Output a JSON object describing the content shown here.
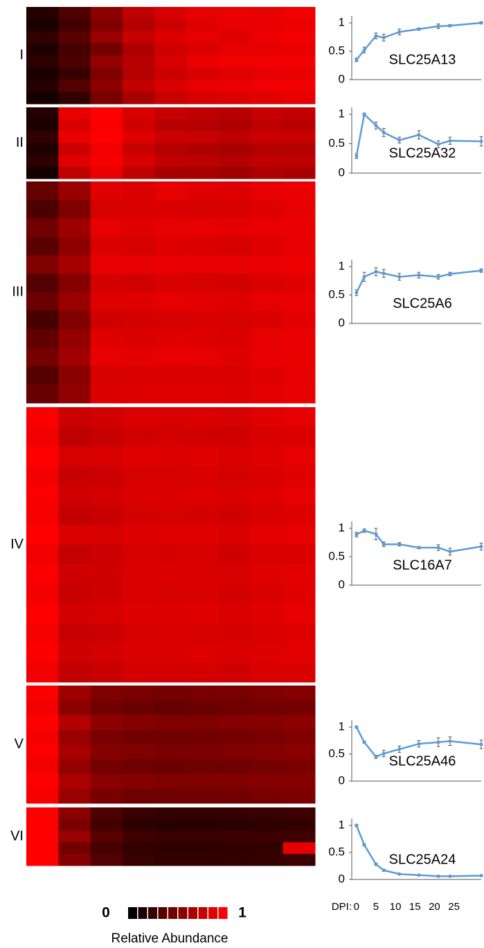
{
  "chart_data": [
    {
      "type": "heatmap",
      "label": "I",
      "rows": [
        [
          0.15,
          0.3,
          0.55,
          0.75,
          0.85,
          0.9,
          0.92,
          0.9,
          0.95
        ],
        [
          0.1,
          0.25,
          0.5,
          0.7,
          0.8,
          0.88,
          0.9,
          0.92,
          0.93
        ],
        [
          0.2,
          0.35,
          0.6,
          0.78,
          0.86,
          0.9,
          0.88,
          0.93,
          0.95
        ],
        [
          0.12,
          0.28,
          0.45,
          0.68,
          0.82,
          0.86,
          0.9,
          0.9,
          0.92
        ],
        [
          0.18,
          0.3,
          0.58,
          0.72,
          0.84,
          0.92,
          0.94,
          0.95,
          0.96
        ],
        [
          0.1,
          0.22,
          0.5,
          0.7,
          0.8,
          0.85,
          0.88,
          0.9,
          0.92
        ],
        [
          0.15,
          0.32,
          0.55,
          0.76,
          0.85,
          0.9,
          0.92,
          0.94,
          0.95
        ],
        [
          0.08,
          0.2,
          0.48,
          0.66,
          0.78,
          0.84,
          0.86,
          0.88,
          0.9
        ]
      ]
    },
    {
      "type": "heatmap",
      "label": "II",
      "rows": [
        [
          0.15,
          0.9,
          1,
          0.85,
          0.78,
          0.75,
          0.72,
          0.78,
          0.76
        ],
        [
          0.1,
          0.85,
          0.98,
          0.82,
          0.72,
          0.7,
          0.68,
          0.74,
          0.72
        ],
        [
          0.2,
          0.92,
          1,
          0.88,
          0.8,
          0.78,
          0.75,
          0.8,
          0.78
        ],
        [
          0.12,
          0.8,
          0.95,
          0.78,
          0.7,
          0.68,
          0.65,
          0.7,
          0.7
        ],
        [
          0.18,
          0.88,
          0.97,
          0.85,
          0.76,
          0.74,
          0.7,
          0.76,
          0.74
        ],
        [
          0.08,
          0.75,
          0.92,
          0.75,
          0.66,
          0.65,
          0.62,
          0.68,
          0.66
        ]
      ]
    },
    {
      "type": "heatmap",
      "label": "III",
      "rows": [
        [
          0.4,
          0.6,
          0.88,
          0.86,
          0.9,
          0.88,
          0.87,
          0.9,
          0.92
        ],
        [
          0.3,
          0.5,
          0.84,
          0.85,
          0.86,
          0.84,
          0.85,
          0.88,
          0.9
        ],
        [
          0.45,
          0.62,
          0.9,
          0.88,
          0.9,
          0.9,
          0.89,
          0.91,
          0.92
        ],
        [
          0.35,
          0.55,
          0.85,
          0.84,
          0.87,
          0.86,
          0.84,
          0.87,
          0.9
        ],
        [
          0.5,
          0.65,
          0.9,
          0.9,
          0.92,
          0.9,
          0.9,
          0.92,
          0.93
        ],
        [
          0.32,
          0.52,
          0.83,
          0.82,
          0.85,
          0.84,
          0.83,
          0.86,
          0.88
        ],
        [
          0.42,
          0.6,
          0.87,
          0.88,
          0.9,
          0.89,
          0.88,
          0.9,
          0.91
        ],
        [
          0.28,
          0.5,
          0.82,
          0.83,
          0.84,
          0.85,
          0.84,
          0.86,
          0.89
        ],
        [
          0.38,
          0.58,
          0.88,
          0.86,
          0.88,
          0.87,
          0.86,
          0.9,
          0.92
        ],
        [
          0.46,
          0.63,
          0.9,
          0.89,
          0.9,
          0.9,
          0.88,
          0.91,
          0.92
        ],
        [
          0.33,
          0.54,
          0.84,
          0.85,
          0.86,
          0.85,
          0.85,
          0.88,
          0.9
        ],
        [
          0.4,
          0.57,
          0.86,
          0.87,
          0.88,
          0.88,
          0.87,
          0.89,
          0.91
        ]
      ]
    },
    {
      "type": "heatmap",
      "label": "IV",
      "rows": [
        [
          0.98,
          0.8,
          0.82,
          0.86,
          0.85,
          0.86,
          0.84,
          0.88,
          0.9
        ],
        [
          0.95,
          0.75,
          0.78,
          0.82,
          0.83,
          0.82,
          0.82,
          0.85,
          0.86
        ],
        [
          1,
          0.84,
          0.85,
          0.88,
          0.87,
          0.88,
          0.86,
          0.88,
          0.9
        ],
        [
          0.96,
          0.78,
          0.8,
          0.84,
          0.84,
          0.85,
          0.83,
          0.86,
          0.88
        ],
        [
          0.99,
          0.82,
          0.83,
          0.86,
          0.86,
          0.87,
          0.85,
          0.87,
          0.9
        ],
        [
          0.97,
          0.76,
          0.79,
          0.83,
          0.84,
          0.83,
          0.82,
          0.85,
          0.87
        ],
        [
          1,
          0.85,
          0.84,
          0.87,
          0.88,
          0.88,
          0.86,
          0.89,
          0.9
        ],
        [
          0.95,
          0.77,
          0.8,
          0.84,
          0.83,
          0.84,
          0.82,
          0.85,
          0.86
        ],
        [
          0.98,
          0.81,
          0.82,
          0.86,
          0.86,
          0.86,
          0.84,
          0.88,
          0.89
        ],
        [
          0.96,
          0.79,
          0.81,
          0.85,
          0.84,
          0.85,
          0.83,
          0.86,
          0.88
        ],
        [
          1,
          0.83,
          0.84,
          0.87,
          0.87,
          0.88,
          0.86,
          0.88,
          0.9
        ],
        [
          0.97,
          0.78,
          0.8,
          0.84,
          0.85,
          0.84,
          0.83,
          0.86,
          0.87
        ],
        [
          0.99,
          0.82,
          0.83,
          0.86,
          0.86,
          0.87,
          0.85,
          0.87,
          0.89
        ],
        [
          0.95,
          0.76,
          0.79,
          0.83,
          0.83,
          0.83,
          0.82,
          0.85,
          0.86
        ]
      ]
    },
    {
      "type": "heatmap",
      "label": "V",
      "rows": [
        [
          0.98,
          0.62,
          0.5,
          0.48,
          0.46,
          0.47,
          0.48,
          0.5,
          0.52
        ],
        [
          0.95,
          0.55,
          0.45,
          0.42,
          0.4,
          0.42,
          0.43,
          0.45,
          0.46
        ],
        [
          1,
          0.7,
          0.55,
          0.52,
          0.5,
          0.5,
          0.52,
          0.53,
          0.55
        ],
        [
          0.96,
          0.6,
          0.48,
          0.45,
          0.44,
          0.45,
          0.46,
          0.48,
          0.5
        ],
        [
          0.99,
          0.66,
          0.52,
          0.5,
          0.48,
          0.49,
          0.5,
          0.52,
          0.54
        ],
        [
          0.95,
          0.58,
          0.46,
          0.43,
          0.42,
          0.43,
          0.44,
          0.46,
          0.48
        ],
        [
          1,
          0.68,
          0.54,
          0.52,
          0.5,
          0.5,
          0.51,
          0.52,
          0.53
        ],
        [
          0.97,
          0.6,
          0.47,
          0.44,
          0.43,
          0.44,
          0.45,
          0.47,
          0.49
        ]
      ]
    },
    {
      "type": "heatmap",
      "label": "VI",
      "rows": [
        [
          1,
          0.55,
          0.3,
          0.22,
          0.2,
          0.2,
          0.21,
          0.22,
          0.24
        ],
        [
          1,
          0.48,
          0.26,
          0.18,
          0.16,
          0.16,
          0.17,
          0.18,
          0.2
        ],
        [
          1,
          0.6,
          0.35,
          0.25,
          0.22,
          0.23,
          0.24,
          0.24,
          0.25
        ],
        [
          1,
          0.45,
          0.28,
          0.2,
          0.18,
          0.18,
          0.19,
          0.2,
          0.9
        ],
        [
          1,
          0.52,
          0.32,
          0.22,
          0.2,
          0.2,
          0.2,
          0.21,
          0.23
        ]
      ]
    },
    {
      "type": "line",
      "title": "SLC25A13",
      "color": "#5b9bd5",
      "x": [
        0,
        2,
        5,
        7,
        11,
        16,
        21,
        24,
        32
      ],
      "values": [
        0.35,
        0.52,
        0.77,
        0.74,
        0.84,
        0.89,
        0.94,
        0.95,
        1.0
      ],
      "errors": [
        0.03,
        0.05,
        0.05,
        0.06,
        0.05,
        0.02,
        0.04,
        0.02,
        0.02
      ],
      "xlim": [
        -0.5,
        32
      ],
      "ylim": [
        0,
        1
      ],
      "yticks": [
        0,
        0.5,
        1
      ]
    },
    {
      "type": "line",
      "title": "SLC25A32",
      "color": "#5b9bd5",
      "x": [
        0,
        2,
        5,
        7,
        11,
        16,
        21,
        24,
        32
      ],
      "values": [
        0.29,
        1.0,
        0.81,
        0.69,
        0.56,
        0.65,
        0.49,
        0.55,
        0.54
      ],
      "errors": [
        0.04,
        0.02,
        0.06,
        0.07,
        0.05,
        0.07,
        0.06,
        0.06,
        0.08
      ],
      "xlim": [
        -0.5,
        32
      ],
      "ylim": [
        0,
        1
      ],
      "yticks": [
        0,
        0.5,
        1
      ]
    },
    {
      "type": "line",
      "title": "SLC25A6",
      "color": "#5b9bd5",
      "x": [
        0,
        2,
        5,
        7,
        11,
        16,
        21,
        24,
        32
      ],
      "values": [
        0.54,
        0.82,
        0.91,
        0.88,
        0.82,
        0.85,
        0.82,
        0.87,
        0.93
      ],
      "errors": [
        0.05,
        0.08,
        0.07,
        0.07,
        0.06,
        0.05,
        0.04,
        0.03,
        0.03
      ],
      "xlim": [
        -0.5,
        32
      ],
      "ylim": [
        0,
        1
      ],
      "yticks": [
        0,
        0.5,
        1
      ]
    },
    {
      "type": "line",
      "title": "SLC16A7",
      "color": "#5b9bd5",
      "x": [
        0,
        2,
        5,
        7,
        11,
        16,
        21,
        24,
        32
      ],
      "values": [
        0.89,
        0.96,
        0.9,
        0.72,
        0.72,
        0.66,
        0.66,
        0.59,
        0.68
      ],
      "errors": [
        0.04,
        0.03,
        0.1,
        0.04,
        0.03,
        0.02,
        0.05,
        0.06,
        0.06
      ],
      "xlim": [
        -0.5,
        32
      ],
      "ylim": [
        0,
        1
      ],
      "yticks": [
        0,
        0.5,
        1
      ]
    },
    {
      "type": "line",
      "title": "SLC25A46",
      "color": "#5b9bd5",
      "x": [
        0,
        2,
        5,
        7,
        11,
        16,
        21,
        24,
        32
      ],
      "values": [
        1.0,
        0.72,
        0.45,
        0.51,
        0.59,
        0.69,
        0.72,
        0.74,
        0.68
      ],
      "errors": [
        0.02,
        0.02,
        0.03,
        0.06,
        0.06,
        0.06,
        0.08,
        0.08,
        0.08
      ],
      "xlim": [
        -0.5,
        32
      ],
      "ylim": [
        0,
        1
      ],
      "yticks": [
        0,
        0.5,
        1
      ]
    },
    {
      "type": "line",
      "title": "SLC25A24",
      "color": "#5b9bd5",
      "x": [
        0,
        2,
        5,
        7,
        11,
        16,
        21,
        24,
        32
      ],
      "values": [
        1.0,
        0.64,
        0.28,
        0.17,
        0.1,
        0.08,
        0.06,
        0.06,
        0.07
      ],
      "errors": [
        0.02,
        0.02,
        0.02,
        0.02,
        0.01,
        0.01,
        0.01,
        0.01,
        0.01
      ],
      "xlim": [
        -0.5,
        32
      ],
      "ylim": [
        0,
        1
      ],
      "yticks": [
        0,
        0.5,
        1
      ],
      "xlabel": "DPI:",
      "xticks": [
        0,
        5,
        10,
        15,
        20,
        25
      ]
    },
    {
      "type": "colorbar",
      "label": "Relative Abundance",
      "ticks": [
        0,
        1
      ],
      "colors": [
        "#000000",
        "#1c0000",
        "#380000",
        "#550000",
        "#710000",
        "#8d0000",
        "#aa0000",
        "#c60000",
        "#e20000",
        "#ff0000"
      ]
    }
  ]
}
